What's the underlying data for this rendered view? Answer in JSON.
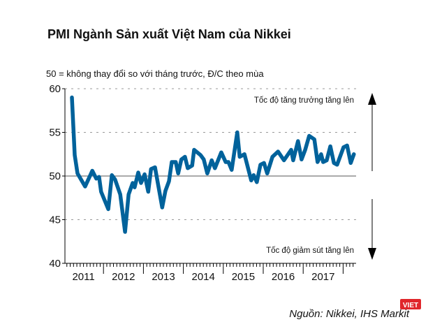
{
  "chart_data": {
    "type": "line",
    "title": "PMI Ngành Sản xuất Việt Nam của Nikkei",
    "subtitle": "50 = không thay đổi so với tháng trước, Đ/C theo mùa",
    "ylim": [
      40,
      60
    ],
    "yticks": [
      "40",
      "45",
      "50",
      "55",
      "60"
    ],
    "xlim": [
      2011,
      2018.3
    ],
    "xticks": [
      "2011",
      "2012",
      "2013",
      "2014",
      "2015",
      "2016",
      "2017"
    ],
    "grid": "horizontal dashed",
    "reference_line": 50,
    "annotations": {
      "up": "Tốc độ tăng trưởng tăng lên",
      "down": "Tốc độ giảm sút tăng lên"
    },
    "source": "Nguồn: Nikkei, IHS Markit",
    "color": "#00629b",
    "points": [
      [
        2011.21,
        59.0
      ],
      [
        2011.28,
        52.4
      ],
      [
        2011.35,
        50.3
      ],
      [
        2011.54,
        48.8
      ],
      [
        2011.72,
        50.6
      ],
      [
        2011.82,
        49.7
      ],
      [
        2011.89,
        49.9
      ],
      [
        2011.94,
        48.2
      ],
      [
        2012.12,
        46.2
      ],
      [
        2012.21,
        50.1
      ],
      [
        2012.29,
        49.6
      ],
      [
        2012.42,
        47.9
      ],
      [
        2012.54,
        43.6
      ],
      [
        2012.63,
        47.9
      ],
      [
        2012.73,
        49.2
      ],
      [
        2012.78,
        48.7
      ],
      [
        2012.87,
        50.4
      ],
      [
        2012.94,
        49.2
      ],
      [
        2013.03,
        50.2
      ],
      [
        2013.12,
        48.2
      ],
      [
        2013.19,
        50.8
      ],
      [
        2013.29,
        51.0
      ],
      [
        2013.47,
        46.4
      ],
      [
        2013.55,
        48.3
      ],
      [
        2013.64,
        49.4
      ],
      [
        2013.71,
        51.6
      ],
      [
        2013.81,
        51.6
      ],
      [
        2013.87,
        50.3
      ],
      [
        2013.95,
        51.9
      ],
      [
        2014.04,
        52.2
      ],
      [
        2014.11,
        50.9
      ],
      [
        2014.22,
        51.2
      ],
      [
        2014.27,
        53.0
      ],
      [
        2014.43,
        52.4
      ],
      [
        2014.51,
        51.9
      ],
      [
        2014.6,
        50.3
      ],
      [
        2014.71,
        51.8
      ],
      [
        2014.79,
        50.9
      ],
      [
        2014.95,
        52.7
      ],
      [
        2015.06,
        51.6
      ],
      [
        2015.13,
        51.6
      ],
      [
        2015.21,
        50.7
      ],
      [
        2015.35,
        55.0
      ],
      [
        2015.41,
        52.2
      ],
      [
        2015.53,
        52.5
      ],
      [
        2015.58,
        51.6
      ],
      [
        2015.7,
        49.5
      ],
      [
        2015.76,
        50.1
      ],
      [
        2015.84,
        49.3
      ],
      [
        2015.93,
        51.3
      ],
      [
        2016.02,
        51.5
      ],
      [
        2016.1,
        50.3
      ],
      [
        2016.23,
        52.2
      ],
      [
        2016.37,
        52.8
      ],
      [
        2016.52,
        51.8
      ],
      [
        2016.7,
        53.0
      ],
      [
        2016.75,
        51.8
      ],
      [
        2016.87,
        54.0
      ],
      [
        2016.96,
        51.9
      ],
      [
        2017.05,
        53.0
      ],
      [
        2017.15,
        54.6
      ],
      [
        2017.28,
        54.2
      ],
      [
        2017.36,
        51.6
      ],
      [
        2017.45,
        52.5
      ],
      [
        2017.5,
        51.6
      ],
      [
        2017.59,
        51.8
      ],
      [
        2017.68,
        53.4
      ],
      [
        2017.77,
        51.5
      ],
      [
        2017.85,
        51.3
      ],
      [
        2018.01,
        53.3
      ],
      [
        2018.1,
        53.5
      ],
      [
        2018.19,
        51.5
      ],
      [
        2018.27,
        52.5
      ]
    ]
  },
  "logo": {
    "text": "VIET",
    "color": "#e0262b"
  }
}
